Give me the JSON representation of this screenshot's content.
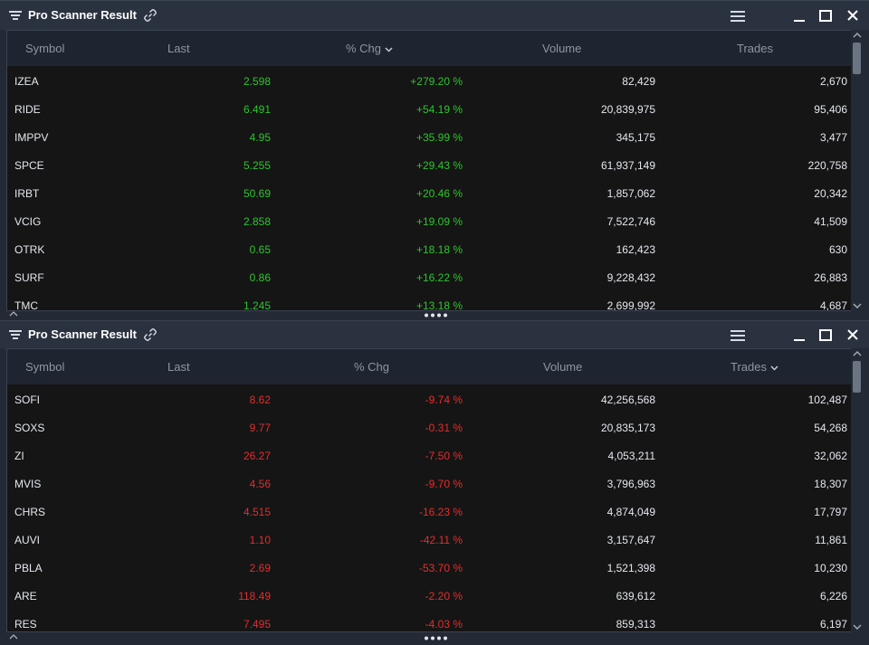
{
  "panels": [
    {
      "title": "Pro Scanner Result",
      "columns": {
        "symbol": "Symbol",
        "last": "Last",
        "chg": "% Chg",
        "volume": "Volume",
        "trades": "Trades"
      },
      "sort_column": "% Chg",
      "rows": [
        {
          "symbol": "IZEA",
          "last": "2.598",
          "chg": "+279.20 %",
          "volume": "82,429",
          "trades": "2,670"
        },
        {
          "symbol": "RIDE",
          "last": "6.491",
          "chg": "+54.19 %",
          "volume": "20,839,975",
          "trades": "95,406"
        },
        {
          "symbol": "IMPPV",
          "last": "4.95",
          "chg": "+35.99 %",
          "volume": "345,175",
          "trades": "3,477"
        },
        {
          "symbol": "SPCE",
          "last": "5.255",
          "chg": "+29.43 %",
          "volume": "61,937,149",
          "trades": "220,758"
        },
        {
          "symbol": "IRBT",
          "last": "50.69",
          "chg": "+20.46 %",
          "volume": "1,857,062",
          "trades": "20,342"
        },
        {
          "symbol": "VCIG",
          "last": "2.858",
          "chg": "+19.09 %",
          "volume": "7,522,746",
          "trades": "41,509"
        },
        {
          "symbol": "OTRK",
          "last": "0.65",
          "chg": "+18.18 %",
          "volume": "162,423",
          "trades": "630"
        },
        {
          "symbol": "SURF",
          "last": "0.86",
          "chg": "+16.22 %",
          "volume": "9,228,432",
          "trades": "26,883"
        },
        {
          "symbol": "TMC",
          "last": "1.245",
          "chg": "+13.18 %",
          "volume": "2,699,992",
          "trades": "4,687"
        }
      ]
    },
    {
      "title": "Pro Scanner Result",
      "columns": {
        "symbol": "Symbol",
        "last": "Last",
        "chg": "% Chg",
        "volume": "Volume",
        "trades": "Trades"
      },
      "sort_column": "Trades",
      "rows": [
        {
          "symbol": "SOFI",
          "last": "8.62",
          "chg": "-9.74 %",
          "volume": "42,256,568",
          "trades": "102,487"
        },
        {
          "symbol": "SOXS",
          "last": "9.77",
          "chg": "-0.31 %",
          "volume": "20,835,173",
          "trades": "54,268"
        },
        {
          "symbol": "ZI",
          "last": "26.27",
          "chg": "-7.50 %",
          "volume": "4,053,211",
          "trades": "32,062"
        },
        {
          "symbol": "MVIS",
          "last": "4.56",
          "chg": "-9.70 %",
          "volume": "3,796,963",
          "trades": "18,307"
        },
        {
          "symbol": "CHRS",
          "last": "4.515",
          "chg": "-16.23 %",
          "volume": "4,874,049",
          "trades": "17,797"
        },
        {
          "symbol": "AUVI",
          "last": "1.10",
          "chg": "-42.11 %",
          "volume": "3,157,647",
          "trades": "11,861"
        },
        {
          "symbol": "PBLA",
          "last": "2.69",
          "chg": "-53.70 %",
          "volume": "1,521,398",
          "trades": "10,230"
        },
        {
          "symbol": "ARE",
          "last": "118.49",
          "chg": "-2.20 %",
          "volume": "639,612",
          "trades": "6,226"
        },
        {
          "symbol": "RES",
          "last": "7.495",
          "chg": "-4.03 %",
          "volume": "859,313",
          "trades": "6,197"
        }
      ]
    }
  ],
  "colors": {
    "positive": "#2fc32f",
    "negative": "#e52c2c",
    "background": "#151515",
    "titlebar": "#2a3240"
  },
  "icons": [
    "filter-icon",
    "link-icon",
    "hamburger-menu-icon",
    "minimize-icon",
    "maximize-icon",
    "close-icon",
    "chevron-down-icon",
    "scroll-up-icon",
    "scroll-down-icon",
    "collapse-up-icon",
    "resize-grip-icon"
  ]
}
